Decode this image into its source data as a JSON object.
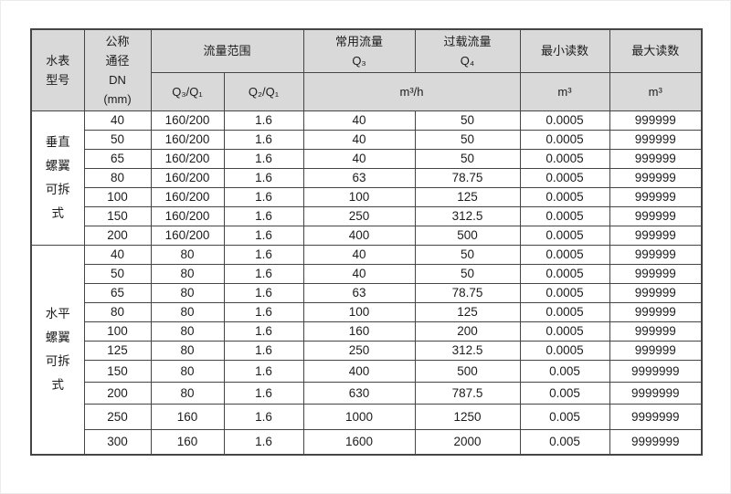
{
  "table": {
    "colors": {
      "header_bg": "#d9d9d9",
      "border": "#454545"
    },
    "header": {
      "meter_type": "水表\n型号",
      "nominal_diameter": "公称\n通径\nDN\n(mm)",
      "flow_range": "流量范围",
      "q3_q1": "Q₃/Q₁",
      "q2_q1": "Q₂/Q₁",
      "common_flow": "常用流量\nQ₃",
      "overload_flow": "过载流量\nQ₄",
      "min_reading": "最小读数",
      "max_reading": "最大读数",
      "flow_unit": "m³/h",
      "min_reading_unit": "m³",
      "max_reading_unit": "m³"
    },
    "groups": [
      {
        "label": "垂直\n螺翼\n可拆\n式",
        "rows": [
          [
            "40",
            "160/200",
            "1.6",
            "40",
            "50",
            "0.0005",
            "999999"
          ],
          [
            "50",
            "160/200",
            "1.6",
            "40",
            "50",
            "0.0005",
            "999999"
          ],
          [
            "65",
            "160/200",
            "1.6",
            "40",
            "50",
            "0.0005",
            "999999"
          ],
          [
            "80",
            "160/200",
            "1.6",
            "63",
            "78.75",
            "0.0005",
            "999999"
          ],
          [
            "100",
            "160/200",
            "1.6",
            "100",
            "125",
            "0.0005",
            "999999"
          ],
          [
            "150",
            "160/200",
            "1.6",
            "250",
            "312.5",
            "0.0005",
            "999999"
          ],
          [
            "200",
            "160/200",
            "1.6",
            "400",
            "500",
            "0.0005",
            "999999"
          ]
        ]
      },
      {
        "label": "水平\n螺翼\n可拆\n式",
        "rows": [
          [
            "40",
            "80",
            "1.6",
            "40",
            "50",
            "0.0005",
            "999999"
          ],
          [
            "50",
            "80",
            "1.6",
            "40",
            "50",
            "0.0005",
            "999999"
          ],
          [
            "65",
            "80",
            "1.6",
            "63",
            "78.75",
            "0.0005",
            "999999"
          ],
          [
            "80",
            "80",
            "1.6",
            "100",
            "125",
            "0.0005",
            "999999"
          ],
          [
            "100",
            "80",
            "1.6",
            "160",
            "200",
            "0.0005",
            "999999"
          ],
          [
            "125",
            "80",
            "1.6",
            "250",
            "312.5",
            "0.0005",
            "999999"
          ],
          [
            "150",
            "80",
            "1.6",
            "400",
            "500",
            "0.005",
            "9999999"
          ],
          [
            "200",
            "80",
            "1.6",
            "630",
            "787.5",
            "0.005",
            "9999999"
          ],
          [
            "250",
            "160",
            "1.6",
            "1000",
            "1250",
            "0.005",
            "9999999"
          ],
          [
            "300",
            "160",
            "1.6",
            "1600",
            "2000",
            "0.005",
            "9999999"
          ]
        ]
      }
    ]
  }
}
